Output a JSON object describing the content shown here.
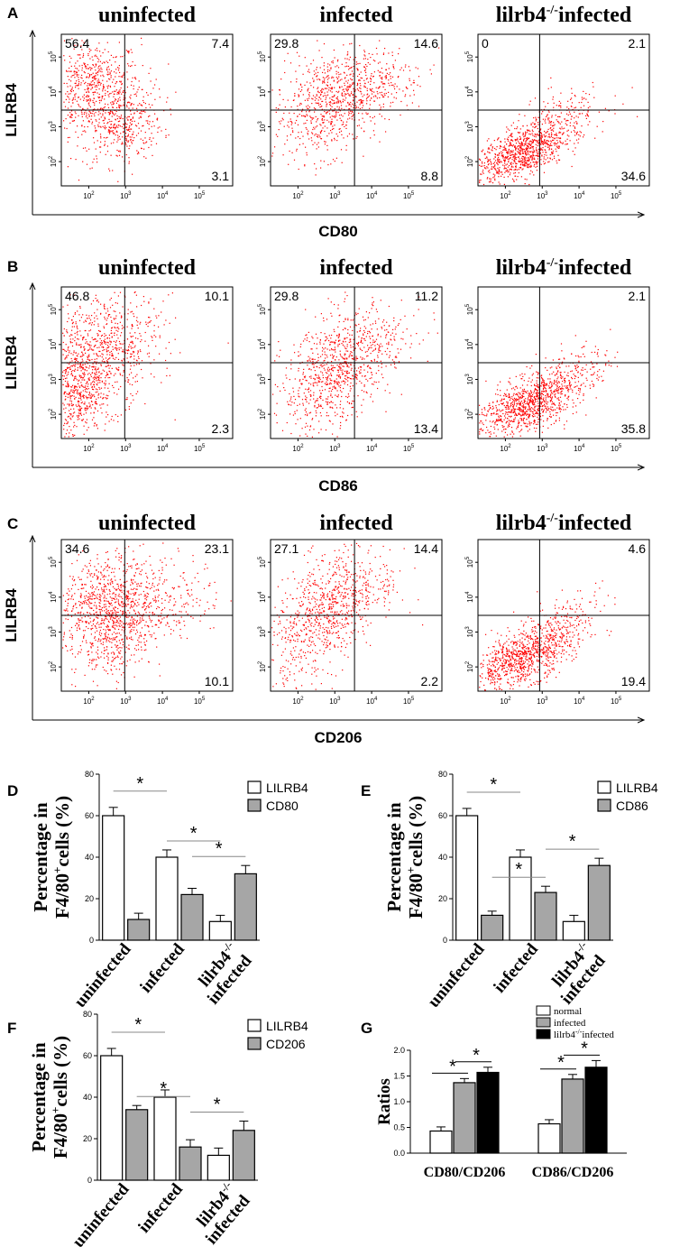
{
  "figure": {
    "panel_labels": [
      "A",
      "B",
      "C",
      "D",
      "E",
      "F",
      "G"
    ]
  },
  "flow_rows": [
    {
      "label": "A",
      "y_axis_label": "LILRB4",
      "x_axis_label": "CD80",
      "plots": [
        {
          "title": "uninfected",
          "q_ul": "56.4",
          "q_ur": "7.4",
          "q_lr": "3.1"
        },
        {
          "title": "infected",
          "q_ul": "29.8",
          "q_ur": "14.6",
          "q_lr": "8.8"
        },
        {
          "title": "lilrb4",
          "title_sup": "-/-",
          "title_suffix": "infected",
          "q_ul": "0",
          "q_ur": "2.1",
          "q_lr": "34.6"
        }
      ]
    },
    {
      "label": "B",
      "y_axis_label": "LILRB4",
      "x_axis_label": "CD86",
      "plots": [
        {
          "title": "uninfected",
          "q_ul": "46.8",
          "q_ur": "10.1",
          "q_lr": "2.3"
        },
        {
          "title": "infected",
          "q_ul": "29.8",
          "q_ur": "11.2",
          "q_lr": "13.4"
        },
        {
          "title": "lilrb4",
          "title_sup": "-/-",
          "title_suffix": "infected",
          "q_ul": "",
          "q_ur": "2.1",
          "q_lr": "35.8"
        }
      ]
    },
    {
      "label": "C",
      "y_axis_label": "LILRB4",
      "x_axis_label": "CD206",
      "plots": [
        {
          "title": "uninfected",
          "q_ul": "34.6",
          "q_ur": "23.1",
          "q_lr": "10.1"
        },
        {
          "title": "infected",
          "q_ul": "27.1",
          "q_ur": "14.4",
          "q_lr": "2.2"
        },
        {
          "title": "lilrb4",
          "title_sup": "-/-",
          "title_suffix": "infected",
          "q_ul": "",
          "q_ur": "4.6",
          "q_lr": "19.4"
        }
      ]
    }
  ],
  "scatter_ticks": {
    "x": [
      "10",
      "10",
      "10",
      "10"
    ],
    "x_exp": [
      "2",
      "3",
      "4",
      "5"
    ],
    "y": [
      "10",
      "10",
      "10",
      "10"
    ],
    "y_exp": [
      "2",
      "3",
      "4",
      "5"
    ]
  },
  "chart_data": [
    {
      "panel": "D",
      "type": "bar",
      "ylabel_line1": "Percentage in",
      "ylabel_line2_pre": "F4/80",
      "ylabel_sup": "+",
      "ylabel_line2_post": "cells (%)",
      "ylim": [
        0,
        80
      ],
      "yticks": [
        "0",
        "20",
        "40",
        "60",
        "80"
      ],
      "categories": [
        "uninfected",
        "infected",
        "lilrb4-/- infected"
      ],
      "category_labels": [
        [
          "uninfected"
        ],
        [
          "infected"
        ],
        [
          "lilrb4",
          "infected"
        ]
      ],
      "category_sup": [
        "",
        "",
        "-/-"
      ],
      "series": [
        {
          "name": "LILRB4",
          "fill": "#ffffff",
          "values": [
            60,
            40,
            9
          ],
          "errors": [
            4,
            3.5,
            3
          ]
        },
        {
          "name": "CD80",
          "fill": "#a6a6a6",
          "values": [
            10,
            22,
            32
          ],
          "errors": [
            3,
            3,
            4
          ]
        }
      ],
      "sig_label": "*",
      "significance": [
        {
          "from": [
            0,
            0
          ],
          "to": [
            1,
            0
          ],
          "label": "*"
        },
        {
          "from": [
            1,
            0
          ],
          "to": [
            2,
            0
          ],
          "label": "*"
        },
        {
          "from": [
            1,
            1
          ],
          "to": [
            2,
            1
          ],
          "label": "*"
        }
      ]
    },
    {
      "panel": "E",
      "type": "bar",
      "ylabel_line1": "Percentage in",
      "ylabel_line2_pre": "F4/80",
      "ylabel_sup": "+",
      "ylabel_line2_post": "cells (%)",
      "ylim": [
        0,
        80
      ],
      "yticks": [
        "0",
        "20",
        "40",
        "60",
        "80"
      ],
      "categories": [
        "uninfected",
        "infected",
        "lilrb4-/- infected"
      ],
      "category_labels": [
        [
          "uninfected"
        ],
        [
          "infected"
        ],
        [
          "lilrb4",
          "infected"
        ]
      ],
      "category_sup": [
        "",
        "",
        "-/-"
      ],
      "series": [
        {
          "name": "LILRB4",
          "fill": "#ffffff",
          "values": [
            60,
            40,
            9
          ],
          "errors": [
            3.5,
            3.5,
            3
          ]
        },
        {
          "name": "CD86",
          "fill": "#a6a6a6",
          "values": [
            12,
            23,
            36
          ],
          "errors": [
            2,
            3,
            3.5
          ]
        }
      ],
      "sig_label": "*",
      "significance": [
        {
          "from": [
            0,
            0
          ],
          "to": [
            1,
            0
          ],
          "label": "*"
        },
        {
          "from": [
            0,
            1
          ],
          "to": [
            1,
            1
          ],
          "label": "*"
        },
        {
          "from": [
            1,
            1
          ],
          "to": [
            2,
            1
          ],
          "label": "*"
        }
      ]
    },
    {
      "panel": "F",
      "type": "bar",
      "ylabel_line1": "Percentage in",
      "ylabel_line2_pre": "F4/80",
      "ylabel_sup": "+",
      "ylabel_line2_post": "cells (%)",
      "ylim": [
        0,
        80
      ],
      "yticks": [
        "0",
        "20",
        "40",
        "60",
        "80"
      ],
      "categories": [
        "uninfected",
        "infected",
        "lilrb4-/- infected"
      ],
      "category_labels": [
        [
          "uninfected"
        ],
        [
          "infected"
        ],
        [
          "lilrb4",
          "infected"
        ]
      ],
      "category_sup": [
        "",
        "",
        "-/-"
      ],
      "series": [
        {
          "name": "LILRB4",
          "fill": "#ffffff",
          "values": [
            60,
            40,
            12
          ],
          "errors": [
            3.5,
            3.5,
            3.5
          ]
        },
        {
          "name": "CD206",
          "fill": "#a6a6a6",
          "values": [
            34,
            16,
            24
          ],
          "errors": [
            2,
            3.5,
            4.5
          ]
        }
      ],
      "sig_label": "*",
      "significance": [
        {
          "from": [
            0,
            0
          ],
          "to": [
            1,
            0
          ],
          "label": "*"
        },
        {
          "from": [
            0,
            1
          ],
          "to": [
            1,
            1
          ],
          "label": "*"
        },
        {
          "from": [
            1,
            1
          ],
          "to": [
            2,
            1
          ],
          "label": "*"
        }
      ]
    },
    {
      "panel": "G",
      "type": "bar",
      "ylabel": "Ratios",
      "ylim": [
        0,
        2.0
      ],
      "yticks": [
        "0.0",
        "0.5",
        "1.0",
        "1.5",
        "2.0"
      ],
      "categories": [
        "CD80/CD206",
        "CD86/CD206"
      ],
      "series": [
        {
          "name": "normal",
          "fill": "#ffffff",
          "values": [
            0.43,
            0.57
          ],
          "errors": [
            0.08,
            0.08
          ]
        },
        {
          "name": "infected",
          "fill": "#a6a6a6",
          "values": [
            1.37,
            1.44
          ],
          "errors": [
            0.08,
            0.09
          ]
        },
        {
          "name": "lilrb4",
          "name_sup": "-/-",
          "name_suffix": "infected",
          "fill": "#000000",
          "values": [
            1.57,
            1.67
          ],
          "errors": [
            0.1,
            0.13
          ]
        }
      ],
      "sig_label": "*",
      "significance": [
        {
          "group": 0,
          "from": 0,
          "to": 1,
          "label": "*"
        },
        {
          "group": 0,
          "from": 1,
          "to": 2,
          "label": "*"
        },
        {
          "group": 1,
          "from": 0,
          "to": 1,
          "label": "*"
        },
        {
          "group": 1,
          "from": 1,
          "to": 2,
          "label": "*"
        }
      ]
    }
  ]
}
